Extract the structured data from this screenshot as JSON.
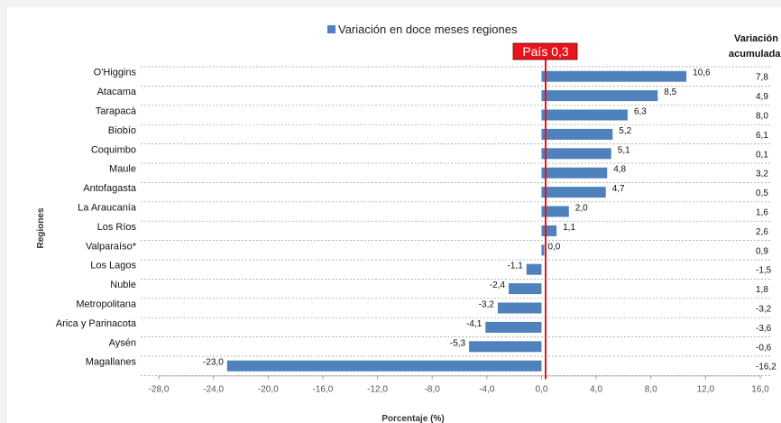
{
  "chart_data": {
    "type": "bar",
    "orientation": "horizontal",
    "title": "",
    "xlabel": "Porcentaje (%)",
    "ylabel": "Regiones",
    "xlim": [
      -28,
      16
    ],
    "xticks": [
      -28,
      -24,
      -20,
      -16,
      -12,
      -8,
      -4,
      0,
      4,
      8,
      12,
      16
    ],
    "xtick_labels": [
      "-28,0",
      "-24,0",
      "-20,0",
      "-16,0",
      "-12,0",
      "-8,0",
      "-4,0",
      "0,0",
      "4,0",
      "8,0",
      "12,0",
      "16,0"
    ],
    "grid": true,
    "legend": "top-center",
    "categories": [
      "O'Higgins",
      "Atacama",
      "Tarapacá",
      "Biobío",
      "Coquimbo",
      "Maule",
      "Antofagasta",
      "La Araucanía",
      "Los Ríos",
      "Valparaíso*",
      "Los Lagos",
      "Nuble",
      "Metropolitana",
      "Arica y Parinacota",
      "Aysén",
      "Magallanes"
    ],
    "series": [
      {
        "name": "Variación en doce meses regiones",
        "color": "#4f81bd",
        "values": [
          10.6,
          8.5,
          6.3,
          5.2,
          5.1,
          4.8,
          4.7,
          2.0,
          1.1,
          0.0,
          -1.1,
          -2.4,
          -3.2,
          -4.1,
          -5.3,
          -23.0
        ],
        "labels": [
          "10,6",
          "8,5",
          "6,3",
          "5,2",
          "5,1",
          "4,8",
          "4,7",
          "2,0",
          "1,1",
          "0,0",
          "-1,1",
          "-2,4",
          "-3,2",
          "-4,1",
          "-5,3",
          "-23,0"
        ]
      }
    ],
    "reference_line": {
      "value": 0.3,
      "label": "País 0,3",
      "color": "#e8141b"
    },
    "accumulated": {
      "header_line1": "Variación",
      "header_line2": "acumulada",
      "values": [
        "7,8",
        "4,9",
        "8,0",
        "6,1",
        "0,1",
        "3,2",
        "0,5",
        "1,6",
        "2,6",
        "0,9",
        "-1,5",
        "1,8",
        "-3,2",
        "-3,6",
        "-0,6",
        "-16,2"
      ]
    }
  }
}
